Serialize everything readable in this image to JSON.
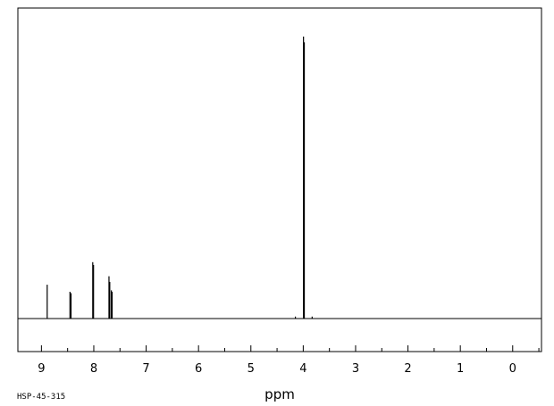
{
  "chart_data": {
    "type": "line",
    "xlabel": "ppm",
    "ylabel": "",
    "x_reversed": true,
    "xlim": [
      9.45,
      -0.55
    ],
    "x_ticks": [
      9,
      8,
      7,
      6,
      5,
      4,
      3,
      2,
      1,
      0
    ],
    "x_tick_labels": [
      "9",
      "8",
      "7",
      "6",
      "5",
      "4",
      "3",
      "2",
      "1",
      "0"
    ],
    "minor_tick_step": 0.5,
    "grid": false,
    "series": [
      {
        "values_relative_intensity": true,
        "peaks": [
          {
            "x": 8.89,
            "y": 0.12
          },
          {
            "x": 8.455,
            "y": 0.095
          },
          {
            "x": 8.435,
            "y": 0.09
          },
          {
            "x": 8.02,
            "y": 0.2
          },
          {
            "x": 8.005,
            "y": 0.19
          },
          {
            "x": 7.71,
            "y": 0.15
          },
          {
            "x": 7.695,
            "y": 0.13
          },
          {
            "x": 7.665,
            "y": 0.1
          },
          {
            "x": 7.65,
            "y": 0.095
          },
          {
            "x": 4.15,
            "y": 0.007
          },
          {
            "x": 3.995,
            "y": 1.0
          },
          {
            "x": 3.98,
            "y": 0.98
          },
          {
            "x": 3.83,
            "y": 0.007
          }
        ]
      }
    ]
  },
  "footer": {
    "sample_code": "HSP-45-315"
  }
}
